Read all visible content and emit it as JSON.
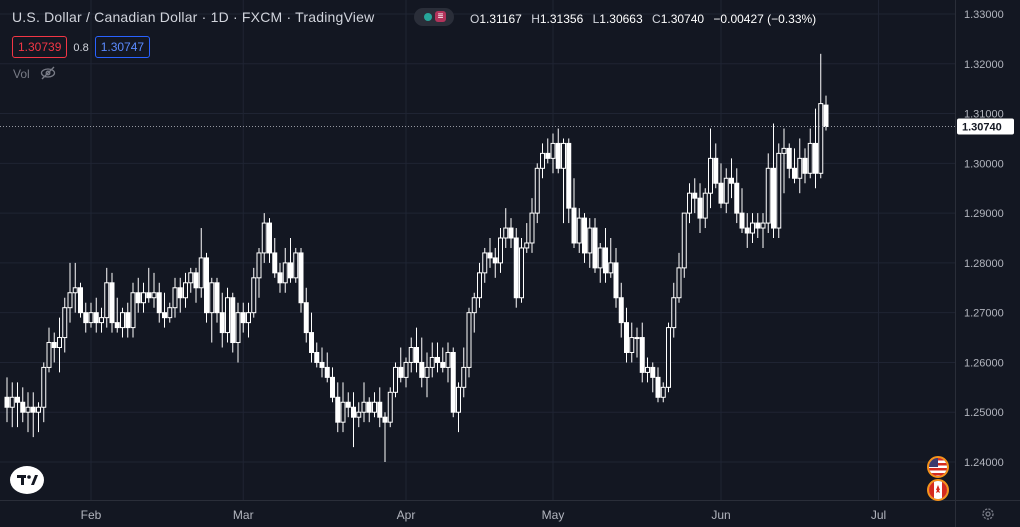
{
  "header": {
    "symbol": "U.S. Dollar / Canadian Dollar · 1D · FXCM · TradingView",
    "open_label": "O",
    "open": "1.31167",
    "high_label": "H",
    "high": "1.31356",
    "low_label": "L",
    "low": "1.30663",
    "close_label": "C",
    "close": "1.30740",
    "change": "−0.00427 (−0.33%)"
  },
  "quote": {
    "bid": "1.30739",
    "spread": "0.8",
    "ask": "1.30747"
  },
  "volume_label": "Vol",
  "status_dot_glyph": "≡",
  "icons": [
    "eye-hidden-icon",
    "tradingview-logo-icon",
    "us-flag-icon",
    "canada-flag-icon",
    "gear-icon"
  ],
  "colors": {
    "background": "#131722",
    "candle": "#ffffff",
    "grid": "#1f2433",
    "bid": "#f23645",
    "ask": "#2962ff",
    "status": "#26a69a"
  },
  "chart_data": {
    "type": "candlestick",
    "title": "U.S. Dollar / Canadian Dollar",
    "xlabel": "",
    "ylabel": "",
    "ylim": [
      1.235,
      1.333
    ],
    "y_ticks": [
      "1.33000",
      "1.32000",
      "1.31000",
      "1.30000",
      "1.29000",
      "1.28000",
      "1.27000",
      "1.26000",
      "1.25000",
      "1.24000"
    ],
    "x_ticks": [
      "Feb",
      "Mar",
      "Apr",
      "May",
      "Jun",
      "Jul"
    ],
    "x_tick_index": [
      16,
      45,
      76,
      104,
      136,
      166
    ],
    "last_price_label": "1.30740",
    "last_price": 1.3074,
    "grid": true,
    "candles": [
      [
        1.253,
        1.257,
        1.248,
        1.251
      ],
      [
        1.251,
        1.256,
        1.247,
        1.253
      ],
      [
        1.253,
        1.256,
        1.247,
        1.252
      ],
      [
        1.252,
        1.255,
        1.248,
        1.25
      ],
      [
        1.25,
        1.254,
        1.246,
        1.251
      ],
      [
        1.251,
        1.254,
        1.245,
        1.25
      ],
      [
        1.25,
        1.252,
        1.246,
        1.251
      ],
      [
        1.251,
        1.26,
        1.248,
        1.259
      ],
      [
        1.259,
        1.267,
        1.258,
        1.264
      ],
      [
        1.264,
        1.266,
        1.26,
        1.263
      ],
      [
        1.263,
        1.269,
        1.258,
        1.265
      ],
      [
        1.265,
        1.273,
        1.262,
        1.271
      ],
      [
        1.271,
        1.28,
        1.268,
        1.274
      ],
      [
        1.274,
        1.28,
        1.27,
        1.275
      ],
      [
        1.275,
        1.276,
        1.269,
        1.27
      ],
      [
        1.27,
        1.272,
        1.266,
        1.268
      ],
      [
        1.268,
        1.272,
        1.267,
        1.27
      ],
      [
        1.27,
        1.273,
        1.266,
        1.268
      ],
      [
        1.268,
        1.271,
        1.266,
        1.269
      ],
      [
        1.269,
        1.279,
        1.267,
        1.276
      ],
      [
        1.276,
        1.278,
        1.266,
        1.268
      ],
      [
        1.268,
        1.273,
        1.266,
        1.267
      ],
      [
        1.267,
        1.271,
        1.265,
        1.27
      ],
      [
        1.27,
        1.272,
        1.265,
        1.267
      ],
      [
        1.267,
        1.276,
        1.265,
        1.274
      ],
      [
        1.274,
        1.277,
        1.27,
        1.272
      ],
      [
        1.272,
        1.276,
        1.27,
        1.274
      ],
      [
        1.274,
        1.279,
        1.272,
        1.273
      ],
      [
        1.273,
        1.278,
        1.271,
        1.274
      ],
      [
        1.274,
        1.276,
        1.268,
        1.27
      ],
      [
        1.27,
        1.274,
        1.267,
        1.269
      ],
      [
        1.269,
        1.272,
        1.268,
        1.271
      ],
      [
        1.271,
        1.277,
        1.269,
        1.275
      ],
      [
        1.275,
        1.277,
        1.27,
        1.273
      ],
      [
        1.273,
        1.278,
        1.271,
        1.276
      ],
      [
        1.276,
        1.279,
        1.274,
        1.278
      ],
      [
        1.278,
        1.279,
        1.272,
        1.275
      ],
      [
        1.275,
        1.287,
        1.273,
        1.281
      ],
      [
        1.281,
        1.282,
        1.268,
        1.27
      ],
      [
        1.27,
        1.277,
        1.264,
        1.276
      ],
      [
        1.276,
        1.277,
        1.268,
        1.27
      ],
      [
        1.27,
        1.274,
        1.263,
        1.266
      ],
      [
        1.266,
        1.275,
        1.264,
        1.273
      ],
      [
        1.273,
        1.274,
        1.262,
        1.264
      ],
      [
        1.264,
        1.272,
        1.26,
        1.27
      ],
      [
        1.27,
        1.272,
        1.266,
        1.268
      ],
      [
        1.268,
        1.272,
        1.265,
        1.27
      ],
      [
        1.27,
        1.279,
        1.269,
        1.277
      ],
      [
        1.277,
        1.283,
        1.273,
        1.282
      ],
      [
        1.282,
        1.29,
        1.28,
        1.288
      ],
      [
        1.288,
        1.289,
        1.28,
        1.282
      ],
      [
        1.282,
        1.285,
        1.277,
        1.278
      ],
      [
        1.278,
        1.28,
        1.274,
        1.276
      ],
      [
        1.276,
        1.283,
        1.274,
        1.28
      ],
      [
        1.28,
        1.285,
        1.276,
        1.277
      ],
      [
        1.277,
        1.283,
        1.276,
        1.282
      ],
      [
        1.282,
        1.283,
        1.27,
        1.272
      ],
      [
        1.272,
        1.275,
        1.264,
        1.266
      ],
      [
        1.266,
        1.27,
        1.26,
        1.262
      ],
      [
        1.262,
        1.264,
        1.259,
        1.26
      ],
      [
        1.26,
        1.263,
        1.257,
        1.259
      ],
      [
        1.259,
        1.262,
        1.256,
        1.257
      ],
      [
        1.257,
        1.259,
        1.252,
        1.253
      ],
      [
        1.253,
        1.256,
        1.246,
        1.248
      ],
      [
        1.248,
        1.256,
        1.246,
        1.252
      ],
      [
        1.252,
        1.254,
        1.249,
        1.251
      ],
      [
        1.251,
        1.254,
        1.243,
        1.249
      ],
      [
        1.249,
        1.252,
        1.247,
        1.25
      ],
      [
        1.25,
        1.256,
        1.248,
        1.252
      ],
      [
        1.252,
        1.253,
        1.248,
        1.25
      ],
      [
        1.25,
        1.254,
        1.249,
        1.252
      ],
      [
        1.252,
        1.255,
        1.247,
        1.249
      ],
      [
        1.249,
        1.25,
        1.24,
        1.248
      ],
      [
        1.248,
        1.255,
        1.247,
        1.254
      ],
      [
        1.254,
        1.26,
        1.253,
        1.259
      ],
      [
        1.259,
        1.263,
        1.256,
        1.257
      ],
      [
        1.257,
        1.261,
        1.255,
        1.26
      ],
      [
        1.26,
        1.265,
        1.258,
        1.263
      ],
      [
        1.263,
        1.267,
        1.258,
        1.26
      ],
      [
        1.26,
        1.265,
        1.255,
        1.257
      ],
      [
        1.257,
        1.262,
        1.253,
        1.259
      ],
      [
        1.259,
        1.264,
        1.257,
        1.261
      ],
      [
        1.261,
        1.264,
        1.258,
        1.26
      ],
      [
        1.26,
        1.263,
        1.258,
        1.259
      ],
      [
        1.259,
        1.264,
        1.256,
        1.262
      ],
      [
        1.262,
        1.263,
        1.249,
        1.25
      ],
      [
        1.25,
        1.256,
        1.246,
        1.255
      ],
      [
        1.255,
        1.263,
        1.253,
        1.259
      ],
      [
        1.259,
        1.271,
        1.257,
        1.27
      ],
      [
        1.27,
        1.274,
        1.266,
        1.273
      ],
      [
        1.273,
        1.28,
        1.271,
        1.278
      ],
      [
        1.278,
        1.283,
        1.276,
        1.282
      ],
      [
        1.282,
        1.285,
        1.279,
        1.281
      ],
      [
        1.281,
        1.283,
        1.277,
        1.28
      ],
      [
        1.28,
        1.287,
        1.278,
        1.285
      ],
      [
        1.285,
        1.291,
        1.283,
        1.287
      ],
      [
        1.287,
        1.289,
        1.283,
        1.285
      ],
      [
        1.285,
        1.287,
        1.271,
        1.273
      ],
      [
        1.273,
        1.285,
        1.272,
        1.283
      ],
      [
        1.283,
        1.288,
        1.282,
        1.284
      ],
      [
        1.284,
        1.293,
        1.282,
        1.29
      ],
      [
        1.29,
        1.3,
        1.288,
        1.299
      ],
      [
        1.299,
        1.304,
        1.297,
        1.302
      ],
      [
        1.302,
        1.305,
        1.3,
        1.301
      ],
      [
        1.301,
        1.306,
        1.298,
        1.304
      ],
      [
        1.304,
        1.307,
        1.298,
        1.299
      ],
      [
        1.299,
        1.305,
        1.288,
        1.304
      ],
      [
        1.304,
        1.305,
        1.288,
        1.291
      ],
      [
        1.291,
        1.297,
        1.283,
        1.284
      ],
      [
        1.284,
        1.291,
        1.282,
        1.289
      ],
      [
        1.289,
        1.29,
        1.28,
        1.282
      ],
      [
        1.282,
        1.289,
        1.279,
        1.287
      ],
      [
        1.287,
        1.289,
        1.278,
        1.279
      ],
      [
        1.279,
        1.284,
        1.276,
        1.283
      ],
      [
        1.283,
        1.287,
        1.276,
        1.278
      ],
      [
        1.278,
        1.285,
        1.277,
        1.28
      ],
      [
        1.28,
        1.283,
        1.271,
        1.273
      ],
      [
        1.273,
        1.276,
        1.265,
        1.268
      ],
      [
        1.268,
        1.271,
        1.26,
        1.262
      ],
      [
        1.262,
        1.268,
        1.26,
        1.265
      ],
      [
        1.265,
        1.267,
        1.261,
        1.265
      ],
      [
        1.265,
        1.268,
        1.256,
        1.258
      ],
      [
        1.258,
        1.261,
        1.256,
        1.259
      ],
      [
        1.259,
        1.26,
        1.254,
        1.257
      ],
      [
        1.257,
        1.259,
        1.252,
        1.253
      ],
      [
        1.253,
        1.256,
        1.252,
        1.255
      ],
      [
        1.255,
        1.268,
        1.254,
        1.267
      ],
      [
        1.267,
        1.276,
        1.265,
        1.273
      ],
      [
        1.273,
        1.282,
        1.272,
        1.279
      ],
      [
        1.279,
        1.29,
        1.277,
        1.29
      ],
      [
        1.29,
        1.296,
        1.288,
        1.294
      ],
      [
        1.294,
        1.297,
        1.29,
        1.293
      ],
      [
        1.293,
        1.296,
        1.286,
        1.289
      ],
      [
        1.289,
        1.295,
        1.287,
        1.294
      ],
      [
        1.294,
        1.307,
        1.291,
        1.301
      ],
      [
        1.301,
        1.304,
        1.295,
        1.296
      ],
      [
        1.296,
        1.3,
        1.291,
        1.292
      ],
      [
        1.292,
        1.299,
        1.29,
        1.297
      ],
      [
        1.297,
        1.301,
        1.293,
        1.296
      ],
      [
        1.296,
        1.299,
        1.288,
        1.29
      ],
      [
        1.29,
        1.295,
        1.286,
        1.287
      ],
      [
        1.287,
        1.29,
        1.283,
        1.286
      ],
      [
        1.286,
        1.29,
        1.284,
        1.288
      ],
      [
        1.288,
        1.29,
        1.285,
        1.287
      ],
      [
        1.287,
        1.29,
        1.283,
        1.288
      ],
      [
        1.288,
        1.302,
        1.286,
        1.299
      ],
      [
        1.299,
        1.308,
        1.285,
        1.287
      ],
      [
        1.287,
        1.304,
        1.285,
        1.302
      ],
      [
        1.302,
        1.307,
        1.294,
        1.303
      ],
      [
        1.303,
        1.304,
        1.297,
        1.299
      ],
      [
        1.299,
        1.303,
        1.296,
        1.297
      ],
      [
        1.297,
        1.305,
        1.294,
        1.301
      ],
      [
        1.301,
        1.303,
        1.296,
        1.298
      ],
      [
        1.298,
        1.307,
        1.297,
        1.304
      ],
      [
        1.304,
        1.311,
        1.295,
        1.298
      ],
      [
        1.298,
        1.322,
        1.297,
        1.312
      ],
      [
        1.3117,
        1.3136,
        1.3066,
        1.3074
      ]
    ]
  }
}
